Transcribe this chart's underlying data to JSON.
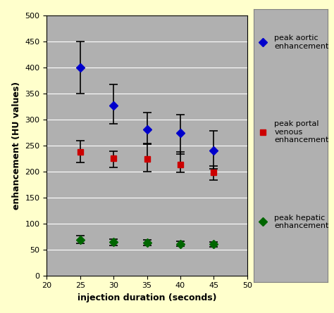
{
  "x": [
    25,
    30,
    35,
    40,
    45
  ],
  "aortic_y": [
    400,
    327,
    281,
    274,
    240
  ],
  "aortic_yerr_upper": [
    50,
    40,
    32,
    35,
    38
  ],
  "aortic_yerr_lower": [
    50,
    35,
    28,
    40,
    35
  ],
  "portal_y": [
    238,
    226,
    224,
    213,
    198
  ],
  "portal_yerr_upper": [
    22,
    13,
    30,
    25,
    13
  ],
  "portal_yerr_lower": [
    20,
    18,
    24,
    15,
    15
  ],
  "hepatic_y": [
    68,
    64,
    63,
    61,
    60
  ],
  "hepatic_yerr_upper": [
    8,
    6,
    5,
    5,
    5
  ],
  "hepatic_yerr_lower": [
    6,
    6,
    6,
    5,
    5
  ],
  "aortic_color": "#0000cc",
  "portal_color": "#cc0000",
  "hepatic_color": "#006600",
  "plot_bg": "#b0b0b0",
  "fig_bg": "#ffffcc",
  "legend_bg": "#b0b0b0",
  "xlabel": "injection duration (seconds)",
  "ylabel": "enhancement (HU values)",
  "xlim": [
    20,
    50
  ],
  "ylim": [
    0,
    500
  ],
  "xticks": [
    20,
    25,
    30,
    35,
    40,
    45,
    50
  ],
  "yticks": [
    0,
    50,
    100,
    150,
    200,
    250,
    300,
    350,
    400,
    450,
    500
  ],
  "legend_labels": [
    "peak aortic\nenhancement",
    "peak portal\nvenous\nenhancement",
    "peak hepatic\nenhancement"
  ]
}
